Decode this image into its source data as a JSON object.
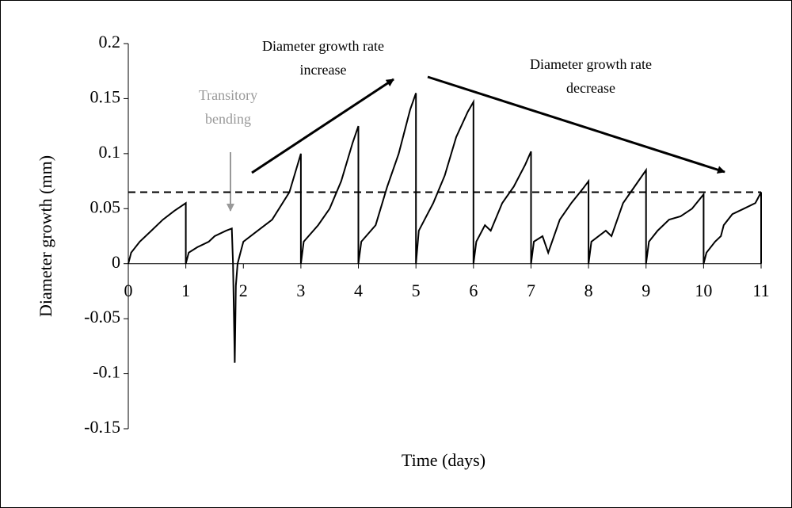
{
  "chart_data": {
    "type": "line",
    "y_label": "Diameter growth (mm)",
    "x_label": "Time (days)",
    "annotations": [
      {
        "lines": [
          "Transitory",
          "bending"
        ]
      },
      {
        "lines": [
          "Diameter growth rate",
          "increase"
        ]
      },
      {
        "lines": [
          "Diameter growth rate",
          "decrease"
        ]
      }
    ],
    "reference_line": 0.065,
    "color": "#000000",
    "x": [
      0,
      0.05,
      0.2,
      0.4,
      0.6,
      0.8,
      1.0,
      1.0,
      1.05,
      1.2,
      1.4,
      1.5,
      1.7,
      1.8,
      1.82,
      1.85,
      1.87,
      1.9,
      1.95,
      2.0,
      2.2,
      2.5,
      2.8,
      3.0,
      3.0,
      3.05,
      3.3,
      3.5,
      3.7,
      3.9,
      4.0,
      4.0,
      4.05,
      4.3,
      4.5,
      4.7,
      4.9,
      5.0,
      5.0,
      5.05,
      5.2,
      5.3,
      5.5,
      5.7,
      5.9,
      6.0,
      6.0,
      6.05,
      6.2,
      6.3,
      6.5,
      6.7,
      6.9,
      7.0,
      7.0,
      7.05,
      7.2,
      7.3,
      7.5,
      7.7,
      7.9,
      8.0,
      8.0,
      8.05,
      8.3,
      8.4,
      8.6,
      8.8,
      9.0,
      9.0,
      9.05,
      9.2,
      9.4,
      9.6,
      9.8,
      10.0,
      10.0,
      10.05,
      10.2,
      10.3,
      10.35,
      10.5,
      10.7,
      10.9,
      11.0,
      11.0
    ],
    "values": [
      0,
      0.01,
      0.02,
      0.03,
      0.04,
      0.048,
      0.055,
      0,
      0.01,
      0.015,
      0.02,
      0.025,
      0.03,
      0.032,
      0,
      -0.09,
      -0.02,
      0,
      0.01,
      0.02,
      0.028,
      0.04,
      0.065,
      0.1,
      0,
      0.02,
      0.035,
      0.05,
      0.075,
      0.11,
      0.125,
      0,
      0.02,
      0.035,
      0.07,
      0.1,
      0.14,
      0.155,
      0,
      0.03,
      0.045,
      0.055,
      0.08,
      0.115,
      0.138,
      0.147,
      0,
      0.02,
      0.035,
      0.03,
      0.055,
      0.07,
      0.09,
      0.102,
      0,
      0.02,
      0.025,
      0.01,
      0.04,
      0.055,
      0.068,
      0.075,
      0,
      0.02,
      0.03,
      0.025,
      0.055,
      0.07,
      0.085,
      0,
      0.02,
      0.03,
      0.04,
      0.043,
      0.05,
      0.063,
      0,
      0.01,
      0.02,
      0.025,
      0.035,
      0.045,
      0.05,
      0.055,
      0.065,
      0
    ],
    "xlim": [
      0,
      11
    ],
    "xticks": [
      0,
      1,
      2,
      3,
      4,
      5,
      6,
      7,
      8,
      9,
      10,
      11
    ],
    "ylim": [
      -0.15,
      0.2
    ],
    "yticks": [
      -0.15,
      -0.1,
      -0.05,
      0,
      0.05,
      0.1,
      0.15,
      0.2
    ]
  }
}
